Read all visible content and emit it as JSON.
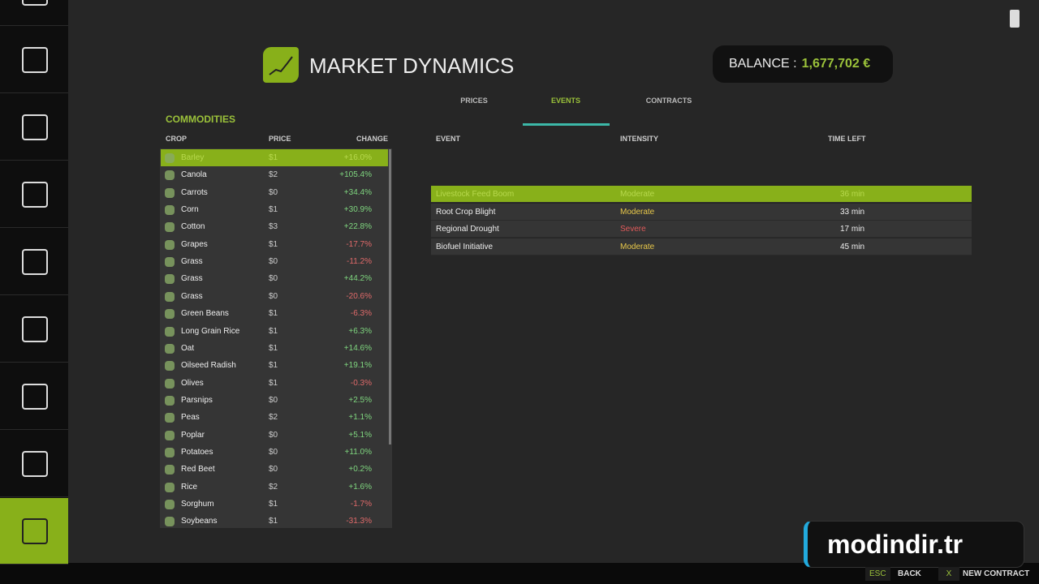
{
  "header": {
    "title": "MARKET DYNAMICS",
    "balance_label": "BALANCE :",
    "balance_value": "1,677,702 €"
  },
  "tabs": {
    "items": [
      "PRICES",
      "EVENTS",
      "CONTRACTS"
    ],
    "active": 1
  },
  "commodities": {
    "title": "COMMODITIES",
    "columns": [
      "CROP",
      "PRICE",
      "CHANGE"
    ],
    "selected": 0,
    "rows": [
      [
        "Barley",
        "$1",
        "+16.0%"
      ],
      [
        "Canola",
        "$2",
        "+105.4%"
      ],
      [
        "Carrots",
        "$0",
        "+34.4%"
      ],
      [
        "Corn",
        "$1",
        "+30.9%"
      ],
      [
        "Cotton",
        "$3",
        "+22.8%"
      ],
      [
        "Grapes",
        "$1",
        "-17.7%"
      ],
      [
        "Grass",
        "$0",
        "-11.2%"
      ],
      [
        "Grass",
        "$0",
        "+44.2%"
      ],
      [
        "Grass",
        "$0",
        "-20.6%"
      ],
      [
        "Green Beans",
        "$1",
        "-6.3%"
      ],
      [
        "Long Grain Rice",
        "$1",
        "+6.3%"
      ],
      [
        "Oat",
        "$1",
        "+14.6%"
      ],
      [
        "Oilseed Radish",
        "$1",
        "+19.1%"
      ],
      [
        "Olives",
        "$1",
        "-0.3%"
      ],
      [
        "Parsnips",
        "$0",
        "+2.5%"
      ],
      [
        "Peas",
        "$2",
        "+1.1%"
      ],
      [
        "Poplar",
        "$0",
        "+5.1%"
      ],
      [
        "Potatoes",
        "$0",
        "+11.0%"
      ],
      [
        "Red Beet",
        "$0",
        "+0.2%"
      ],
      [
        "Rice",
        "$2",
        "+1.6%"
      ],
      [
        "Sorghum",
        "$1",
        "-1.7%"
      ],
      [
        "Soybeans",
        "$1",
        "-31.3%"
      ]
    ]
  },
  "events": {
    "columns": [
      "EVENT",
      "INTENSITY",
      "TIME LEFT"
    ],
    "selected": 0,
    "rows": [
      {
        "event": "Livestock Feed Boom",
        "intensity": "Moderate",
        "intensity_color": "#e8c84a",
        "time": "36 min"
      },
      {
        "event": "Root Crop Blight",
        "intensity": "Moderate",
        "intensity_color": "#e8c84a",
        "time": "33 min"
      },
      {
        "event": "Regional Drought",
        "intensity": "Severe",
        "intensity_color": "#e05a5a",
        "time": "17 min"
      },
      {
        "event": "Biofuel Initiative",
        "intensity": "Moderate",
        "intensity_color": "#e8c84a",
        "time": "45 min"
      }
    ]
  },
  "footer": {
    "actions": [
      {
        "key": "ESC",
        "label": "BACK"
      },
      {
        "key": "X",
        "label": "NEW CONTRACT"
      }
    ]
  },
  "watermark": "modindir.tr"
}
